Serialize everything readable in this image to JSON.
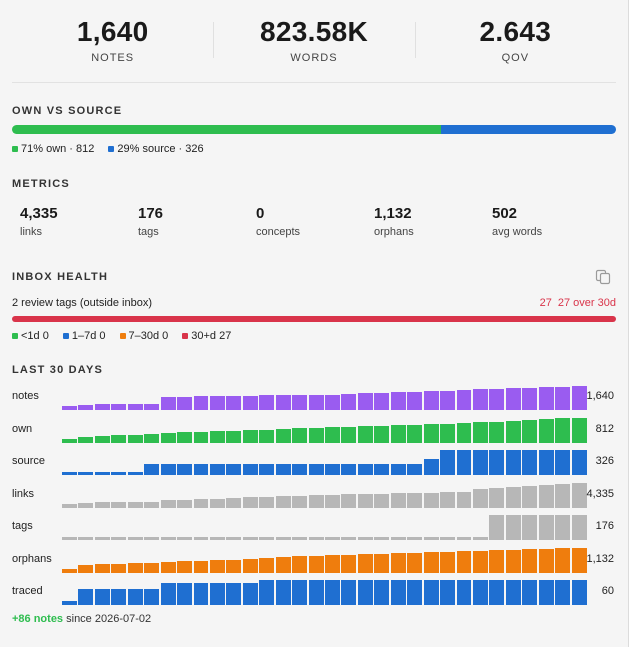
{
  "stats": [
    {
      "value": "1,640",
      "label": "NOTES"
    },
    {
      "value": "823.58K",
      "label": "WORDS"
    },
    {
      "value": "2.643",
      "label": "QOV"
    }
  ],
  "own_vs_source": {
    "title": "OWN VS SOURCE",
    "own_fraction": 0.71,
    "own_label": "71% own · 812",
    "source_label": "29% source · 326",
    "own_color": "#2ebd4f",
    "source_color": "#1f6fd1"
  },
  "metrics": {
    "title": "METRICS",
    "items": [
      {
        "value": "4,335",
        "label": "links"
      },
      {
        "value": "176",
        "label": "tags"
      },
      {
        "value": "0",
        "label": "concepts"
      },
      {
        "value": "1,132",
        "label": "orphans"
      },
      {
        "value": "502",
        "label": "avg words"
      }
    ]
  },
  "inbox": {
    "title": "INBOX HEALTH",
    "review_text": "2 review tags (outside inbox)",
    "count": "27",
    "over_text": "27 over 30d",
    "bar_color": "#d9344a",
    "legend": [
      {
        "label": "<1d 0",
        "color": "#2ebd4f"
      },
      {
        "label": "1–7d 0",
        "color": "#1f6fd1"
      },
      {
        "label": "7–30d 0",
        "color": "#ef7d0d"
      },
      {
        "label": "30+d 27",
        "color": "#d9344a"
      }
    ]
  },
  "last30": {
    "title": "LAST 30 DAYS",
    "rows": [
      {
        "label": "notes",
        "value": "1,640",
        "color": "#9a5cf0",
        "levels": [
          0.15,
          0.2,
          0.22,
          0.22,
          0.22,
          0.22,
          0.5,
          0.5,
          0.52,
          0.52,
          0.54,
          0.54,
          0.56,
          0.56,
          0.58,
          0.58,
          0.58,
          0.62,
          0.64,
          0.66,
          0.68,
          0.7,
          0.72,
          0.74,
          0.76,
          0.8,
          0.82,
          0.84,
          0.86,
          0.88,
          0.9,
          0.92
        ]
      },
      {
        "label": "own",
        "value": "812",
        "color": "#2ebd4f",
        "levels": [
          0.15,
          0.22,
          0.26,
          0.28,
          0.3,
          0.32,
          0.36,
          0.4,
          0.42,
          0.44,
          0.46,
          0.48,
          0.5,
          0.52,
          0.54,
          0.56,
          0.58,
          0.6,
          0.62,
          0.64,
          0.66,
          0.68,
          0.7,
          0.72,
          0.74,
          0.78,
          0.8,
          0.82,
          0.86,
          0.9,
          0.94,
          0.96
        ]
      },
      {
        "label": "source",
        "value": "326",
        "color": "#1f6fd1",
        "levels": [
          0.12,
          0.12,
          0.12,
          0.12,
          0.12,
          0.42,
          0.42,
          0.42,
          0.42,
          0.42,
          0.42,
          0.42,
          0.42,
          0.42,
          0.42,
          0.42,
          0.42,
          0.42,
          0.42,
          0.42,
          0.42,
          0.42,
          0.62,
          0.95,
          0.95,
          0.95,
          0.95,
          0.95,
          0.95,
          0.95,
          0.95,
          0.95
        ]
      },
      {
        "label": "links",
        "value": "4,335",
        "color": "#b7b7b7",
        "levels": [
          0.15,
          0.18,
          0.2,
          0.2,
          0.22,
          0.22,
          0.3,
          0.3,
          0.32,
          0.34,
          0.36,
          0.4,
          0.42,
          0.44,
          0.46,
          0.48,
          0.5,
          0.52,
          0.52,
          0.52,
          0.54,
          0.54,
          0.56,
          0.58,
          0.6,
          0.72,
          0.74,
          0.78,
          0.82,
          0.86,
          0.9,
          0.95
        ]
      },
      {
        "label": "tags",
        "value": "176",
        "color": "#b7b7b7",
        "levels": [
          0.12,
          0.12,
          0.12,
          0.12,
          0.12,
          0.12,
          0.12,
          0.12,
          0.12,
          0.12,
          0.12,
          0.12,
          0.12,
          0.12,
          0.12,
          0.12,
          0.12,
          0.12,
          0.12,
          0.12,
          0.12,
          0.12,
          0.12,
          0.12,
          0.12,
          0.12,
          0.95,
          0.95,
          0.95,
          0.95,
          0.95,
          0.95
        ]
      },
      {
        "label": "orphans",
        "value": "1,132",
        "color": "#ef7d0d",
        "levels": [
          0.15,
          0.3,
          0.32,
          0.34,
          0.36,
          0.38,
          0.42,
          0.44,
          0.46,
          0.48,
          0.5,
          0.52,
          0.55,
          0.58,
          0.62,
          0.64,
          0.66,
          0.68,
          0.7,
          0.72,
          0.74,
          0.76,
          0.78,
          0.8,
          0.82,
          0.84,
          0.86,
          0.88,
          0.9,
          0.92,
          0.94,
          0.96
        ]
      },
      {
        "label": "traced",
        "value": "60",
        "color": "#1f6fd1",
        "levels": [
          0.15,
          0.6,
          0.6,
          0.6,
          0.6,
          0.6,
          0.85,
          0.85,
          0.85,
          0.85,
          0.85,
          0.85,
          0.95,
          0.95,
          0.95,
          0.95,
          0.95,
          0.95,
          0.95,
          0.95,
          0.95,
          0.95,
          0.95,
          0.95,
          0.95,
          0.95,
          0.95,
          0.95,
          0.95,
          0.95,
          0.95,
          0.95
        ]
      }
    ]
  },
  "footer": {
    "delta": "+86 notes",
    "since": " since 2026-07-02"
  }
}
